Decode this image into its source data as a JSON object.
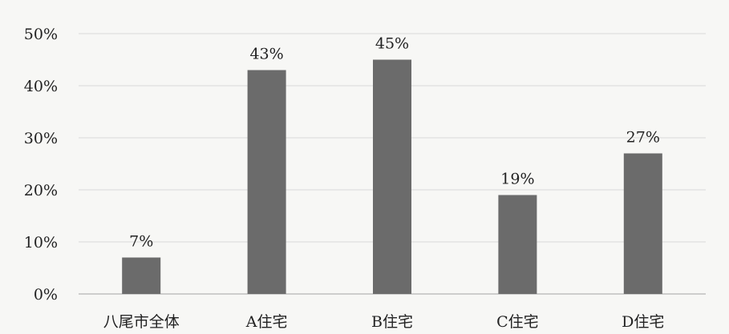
{
  "chart_data": {
    "type": "bar",
    "title": "",
    "xlabel": "",
    "ylabel": "",
    "categories": [
      "八尾市全体",
      "A住宅",
      "B住宅",
      "C住宅",
      "D住宅"
    ],
    "values": [
      7,
      43,
      45,
      19,
      27
    ],
    "data_labels": [
      "7%",
      "43%",
      "45%",
      "19%",
      "27%"
    ],
    "ylim": [
      0,
      50
    ],
    "y_ticks": [
      0,
      10,
      20,
      30,
      40,
      50
    ],
    "y_tick_labels": [
      "0%",
      "10%",
      "20%",
      "30%",
      "40%",
      "50%"
    ],
    "grid": true,
    "legend": "none",
    "colors": {
      "bar": "#6b6b6b",
      "grid": "#d9d9d9",
      "axis": "#bfbfbf",
      "text": "#222222"
    }
  }
}
